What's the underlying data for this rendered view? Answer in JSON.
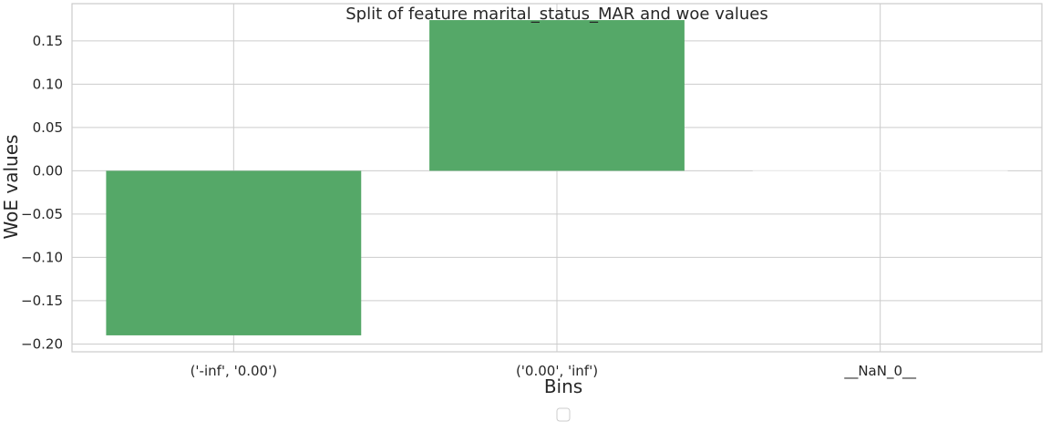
{
  "chart_data": {
    "type": "bar",
    "title": "Split of feature marital_status_MAR and woe values",
    "xlabel": "Bins",
    "ylabel": "WoE values",
    "categories": [
      "('-inf', '0.00')",
      "('0.00', 'inf')",
      "__NaN_0__"
    ],
    "values": [
      -0.19,
      0.174,
      0.0
    ],
    "ylim": [
      -0.209,
      0.193
    ],
    "yticks": [
      -0.2,
      -0.15,
      -0.1,
      -0.05,
      0.0,
      0.05,
      0.1,
      0.15
    ],
    "ytick_labels": [
      "−0.20",
      "−0.15",
      "−0.10",
      "−0.05",
      "0.00",
      "0.05",
      "0.10",
      "0.15"
    ],
    "grid": true,
    "legend": "bottom-center, empty",
    "colors": {
      "bar": "#55a868",
      "grid": "#cccccc",
      "axes_edge": "#cccccc",
      "text": "#262626"
    }
  }
}
